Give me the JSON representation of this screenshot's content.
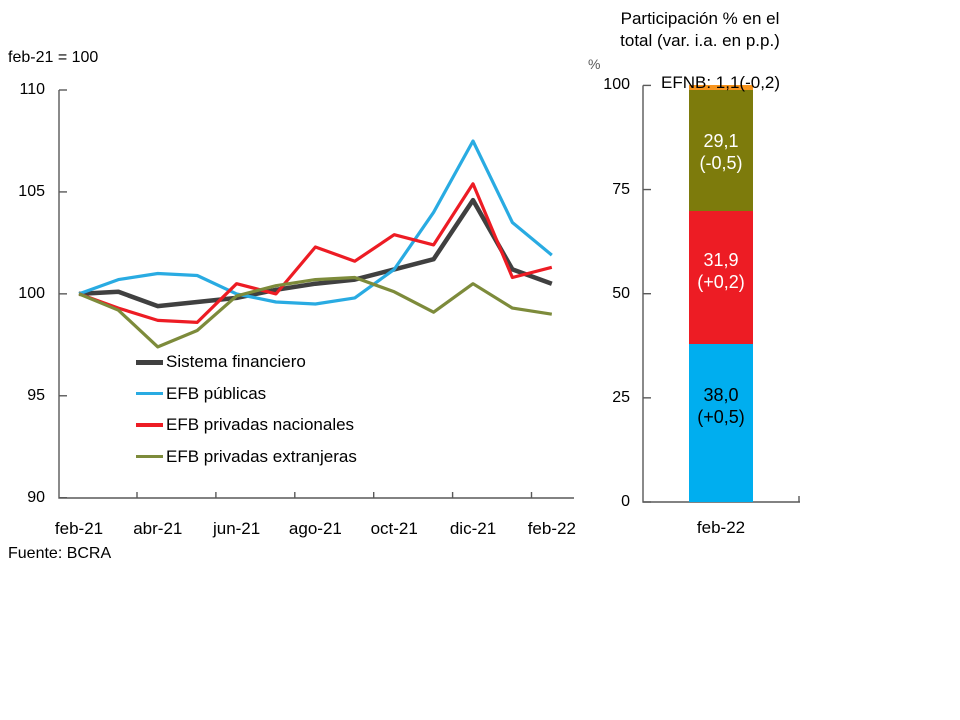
{
  "left_chart": {
    "title": "feb-21 = 100",
    "source": "Fuente: BCRA",
    "y_ticks": [
      "110",
      "105",
      "100",
      "95",
      "90"
    ],
    "x_ticks": [
      "feb-21",
      "abr-21",
      "jun-21",
      "ago-21",
      "oct-21",
      "dic-21",
      "feb-22"
    ],
    "legend": [
      {
        "label": "Sistema financiero",
        "color": "#404040"
      },
      {
        "label": "EFB públicas",
        "color": "#29abe2"
      },
      {
        "label": "EFB privadas nacionales",
        "color": "#ed1c24"
      },
      {
        "label": "EFB privadas extranjeras",
        "color": "#7d8b3b"
      }
    ]
  },
  "right_chart": {
    "title_line1": "Participación % en el",
    "title_line2": "total (var. i.a. en p.p.)",
    "unit_label": "%",
    "y_ticks": [
      "100",
      "75",
      "50",
      "25",
      "0"
    ],
    "x_label": "feb-22",
    "efnb_label": "EFNB: 1,1(-0,2)",
    "segments": [
      {
        "name": "EFB públicas",
        "value": 38.0,
        "label_line1": "38,0",
        "label_line2": "(+0,5)",
        "color": "#00aeef",
        "text_color": "#000000"
      },
      {
        "name": "EFB privadas nacionales",
        "value": 31.9,
        "label_line1": "31,9",
        "label_line2": "(+0,2)",
        "color": "#ed1c24",
        "text_color": "#ffffff"
      },
      {
        "name": "EFB privadas extranjeras",
        "value": 29.1,
        "label_line1": "29,1",
        "label_line2": "(-0,5)",
        "color": "#7d7b0c",
        "text_color": "#ffffff"
      },
      {
        "name": "EFNB",
        "value": 1.1,
        "label_line1": "",
        "label_line2": "",
        "color": "#f7941d",
        "text_color": "#000000"
      }
    ]
  },
  "chart_data": [
    {
      "type": "line",
      "title": "feb-21 = 100",
      "x": [
        "feb-21",
        "mar-21",
        "abr-21",
        "may-21",
        "jun-21",
        "jul-21",
        "ago-21",
        "sep-21",
        "oct-21",
        "nov-21",
        "dic-21",
        "ene-22",
        "feb-22"
      ],
      "x_tick_labels_shown": [
        "feb-21",
        "abr-21",
        "jun-21",
        "ago-21",
        "oct-21",
        "dic-21",
        "feb-22"
      ],
      "ylim": [
        90,
        110
      ],
      "y_ticks": [
        90,
        95,
        100,
        105,
        110
      ],
      "grid": false,
      "legend_position": "inside-lower-left",
      "series": [
        {
          "name": "Sistema financiero",
          "color": "#404040",
          "values": [
            100,
            100.1,
            99.4,
            99.6,
            99.8,
            100.2,
            100.5,
            100.7,
            101.2,
            101.7,
            104.6,
            101.2,
            100.5
          ]
        },
        {
          "name": "EFB públicas",
          "color": "#29abe2",
          "values": [
            100,
            100.7,
            101.0,
            100.9,
            100.0,
            99.6,
            99.5,
            99.8,
            101.2,
            104.0,
            107.5,
            103.5,
            101.9
          ]
        },
        {
          "name": "EFB privadas nacionales",
          "color": "#ed1c24",
          "values": [
            100,
            99.3,
            98.7,
            98.6,
            100.5,
            100.0,
            102.3,
            101.6,
            102.9,
            102.4,
            105.4,
            100.8,
            101.3
          ]
        },
        {
          "name": "EFB privadas extranjeras",
          "color": "#7d8b3b",
          "values": [
            100,
            99.2,
            97.4,
            98.2,
            99.9,
            100.4,
            100.7,
            100.8,
            100.1,
            99.1,
            100.5,
            99.3,
            99.0
          ]
        }
      ]
    },
    {
      "type": "bar",
      "subtype": "stacked",
      "title": "Participación % en el total (var. i.a. en p.p.)",
      "categories": [
        "feb-22"
      ],
      "ylim": [
        0,
        100
      ],
      "y_ticks": [
        0,
        25,
        50,
        75,
        100
      ],
      "series": [
        {
          "name": "EFB públicas",
          "values": [
            38.0
          ],
          "var_ia_pp": "+0,5",
          "color": "#00aeef"
        },
        {
          "name": "EFB privadas nacionales",
          "values": [
            31.9
          ],
          "var_ia_pp": "+0,2",
          "color": "#ed1c24"
        },
        {
          "name": "EFB privadas extranjeras",
          "values": [
            29.1
          ],
          "var_ia_pp": "-0,5",
          "color": "#7d7b0c"
        },
        {
          "name": "EFNB",
          "values": [
            1.1
          ],
          "var_ia_pp": "-0,2",
          "color": "#f7941d"
        }
      ]
    }
  ]
}
